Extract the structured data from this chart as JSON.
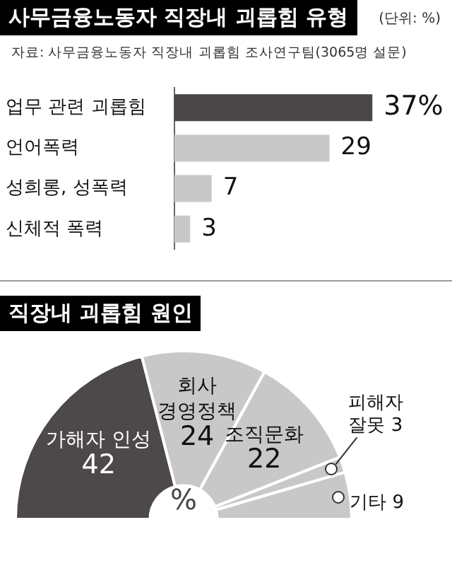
{
  "chart_data": [
    {
      "type": "bar",
      "orientation": "horizontal",
      "title": "사무금융노동자 직장내 괴롭힘 유형",
      "annotations": [
        "(단위: %)",
        "자료: 사무금융노동자 직장내 괴롭힘 조사연구팀(3065명 설문)"
      ],
      "categories": [
        "업무 관련 괴롭힘",
        "언어폭력",
        "성희롱, 성폭력",
        "신체적 폭력"
      ],
      "values": [
        37,
        29,
        7,
        3
      ],
      "value_labels": [
        "37%",
        "29",
        "7",
        "3"
      ],
      "colors": [
        "#4a4546",
        "#c8c8c8",
        "#c8c8c8",
        "#c8c8c8"
      ],
      "tick_labels": "y",
      "legend": false
    },
    {
      "type": "donut",
      "title": "직장내 괴롭힘 원인",
      "annotations": [
        "%"
      ],
      "categories": [
        "가해자 인성",
        "회사 경영정책",
        "조직문화",
        "피해자 잘못",
        "기타"
      ],
      "values": [
        42,
        24,
        22,
        3,
        9
      ],
      "colors": [
        "#4d4849",
        "#c8c8c8",
        "#c8c8c8",
        "#c8c8c8",
        "#c8c8c8"
      ],
      "data_labels": true,
      "legend": false
    }
  ]
}
